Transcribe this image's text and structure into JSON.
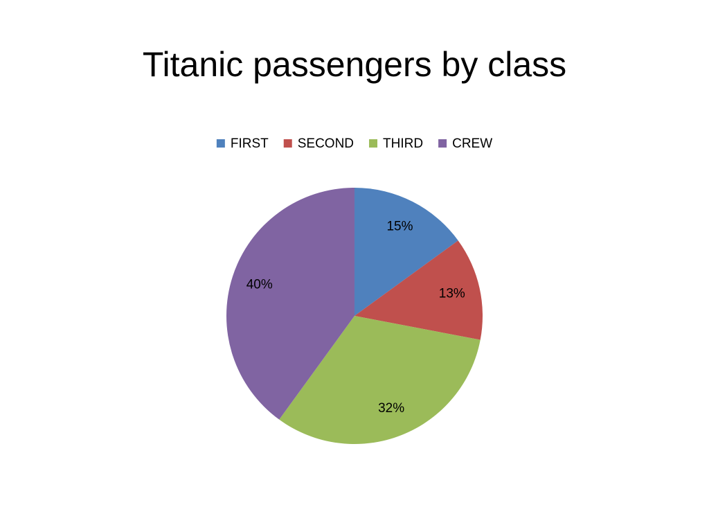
{
  "chart_data": {
    "type": "pie",
    "title": "Titanic passengers by class",
    "categories": [
      "FIRST",
      "SECOND",
      "THIRD",
      "CREW"
    ],
    "values": [
      15,
      13,
      32,
      40
    ],
    "value_labels": [
      "15%",
      "13%",
      "32%",
      "40%"
    ],
    "colors": [
      "#4f81bd",
      "#c0504d",
      "#9bbb59",
      "#8064a2"
    ],
    "legend": "top"
  }
}
